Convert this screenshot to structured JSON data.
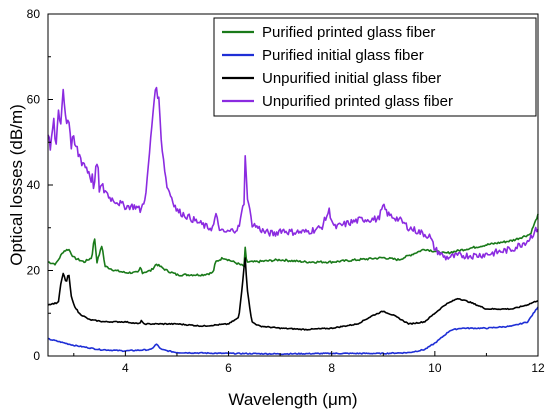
{
  "chart_data": {
    "type": "line",
    "title": "",
    "xlabel": "Wavelength (μm)",
    "ylabel": "Optical losses (dB/m)",
    "xlim": [
      2.5,
      12
    ],
    "ylim": [
      0,
      80
    ],
    "x_ticks": [
      4,
      6,
      8,
      10,
      12
    ],
    "y_ticks": [
      0,
      20,
      40,
      60,
      80
    ],
    "x_tick_labels": [
      "4",
      "6",
      "8",
      "10",
      "12"
    ],
    "y_tick_labels": [
      "0",
      "20",
      "40",
      "60",
      "80"
    ],
    "grid": false,
    "legend_position": "top-right",
    "series": [
      {
        "name": "Purified printed glass fiber",
        "color": "#1a7a1a",
        "points": [
          [
            2.5,
            22
          ],
          [
            2.65,
            21.5
          ],
          [
            2.8,
            24.5
          ],
          [
            2.9,
            25
          ],
          [
            3.0,
            23
          ],
          [
            3.2,
            22
          ],
          [
            3.35,
            23
          ],
          [
            3.4,
            28
          ],
          [
            3.45,
            22
          ],
          [
            3.55,
            26
          ],
          [
            3.6,
            21
          ],
          [
            3.8,
            20
          ],
          [
            4.0,
            19.5
          ],
          [
            4.25,
            19.5
          ],
          [
            4.3,
            21
          ],
          [
            4.32,
            19.5
          ],
          [
            4.5,
            20
          ],
          [
            4.6,
            21.5
          ],
          [
            4.8,
            20
          ],
          [
            5.0,
            19
          ],
          [
            5.5,
            19
          ],
          [
            5.7,
            19.5
          ],
          [
            5.75,
            22
          ],
          [
            5.9,
            23
          ],
          [
            6.1,
            22
          ],
          [
            6.3,
            21
          ],
          [
            6.32,
            25.5
          ],
          [
            6.35,
            22
          ],
          [
            6.5,
            22
          ],
          [
            7.0,
            22.5
          ],
          [
            7.5,
            22
          ],
          [
            8.0,
            22
          ],
          [
            8.5,
            22.5
          ],
          [
            9.0,
            23
          ],
          [
            9.3,
            22.5
          ],
          [
            9.6,
            24
          ],
          [
            9.8,
            25
          ],
          [
            10.0,
            24.5
          ],
          [
            10.2,
            24
          ],
          [
            10.6,
            25
          ],
          [
            11.0,
            26
          ],
          [
            11.5,
            27
          ],
          [
            11.85,
            28.5
          ],
          [
            12.0,
            33
          ]
        ]
      },
      {
        "name": "Purified initial glass fiber",
        "color": "#1f2fd6",
        "points": [
          [
            2.5,
            4
          ],
          [
            3.0,
            2.5
          ],
          [
            3.5,
            1.5
          ],
          [
            4.0,
            1.2
          ],
          [
            4.5,
            1.5
          ],
          [
            4.6,
            2.8
          ],
          [
            4.7,
            1.5
          ],
          [
            5.0,
            0.8
          ],
          [
            6.0,
            0.6
          ],
          [
            7.0,
            0.5
          ],
          [
            8.0,
            0.6
          ],
          [
            9.0,
            0.6
          ],
          [
            9.5,
            0.8
          ],
          [
            9.8,
            1.5
          ],
          [
            10.0,
            3
          ],
          [
            10.3,
            6
          ],
          [
            10.5,
            6.5
          ],
          [
            11.0,
            6.5
          ],
          [
            11.5,
            7
          ],
          [
            11.8,
            8
          ],
          [
            12.0,
            11.5
          ]
        ]
      },
      {
        "name": "Unpurified initial glass fiber",
        "color": "#000000",
        "points": [
          [
            2.5,
            12
          ],
          [
            2.7,
            12.5
          ],
          [
            2.75,
            17
          ],
          [
            2.8,
            19.5
          ],
          [
            2.85,
            17
          ],
          [
            2.9,
            19.5
          ],
          [
            2.95,
            14
          ],
          [
            3.0,
            12
          ],
          [
            3.1,
            10
          ],
          [
            3.3,
            8.5
          ],
          [
            3.6,
            8
          ],
          [
            4.0,
            8
          ],
          [
            4.28,
            7.5
          ],
          [
            4.3,
            8.5
          ],
          [
            4.35,
            7.5
          ],
          [
            4.6,
            7.5
          ],
          [
            5.0,
            7.5
          ],
          [
            5.5,
            7
          ],
          [
            6.0,
            7.5
          ],
          [
            6.2,
            9
          ],
          [
            6.28,
            18
          ],
          [
            6.32,
            23.5
          ],
          [
            6.36,
            16
          ],
          [
            6.45,
            8
          ],
          [
            6.6,
            7
          ],
          [
            7.0,
            6.5
          ],
          [
            7.5,
            6.2
          ],
          [
            8.0,
            6.5
          ],
          [
            8.5,
            7.5
          ],
          [
            8.8,
            9.5
          ],
          [
            9.0,
            10.5
          ],
          [
            9.2,
            9.5
          ],
          [
            9.5,
            7.5
          ],
          [
            9.8,
            8
          ],
          [
            10.2,
            12
          ],
          [
            10.45,
            13.5
          ],
          [
            10.7,
            12.5
          ],
          [
            11.0,
            11
          ],
          [
            11.5,
            11
          ],
          [
            11.8,
            12
          ],
          [
            12.0,
            13
          ]
        ]
      },
      {
        "name": "Unpurified printed glass fiber",
        "color": "#8b2be0",
        "points": [
          [
            2.5,
            52
          ],
          [
            2.55,
            47
          ],
          [
            2.6,
            56
          ],
          [
            2.65,
            48
          ],
          [
            2.7,
            58
          ],
          [
            2.75,
            55
          ],
          [
            2.8,
            63
          ],
          [
            2.85,
            55
          ],
          [
            2.9,
            56
          ],
          [
            2.95,
            49
          ],
          [
            3.0,
            50
          ],
          [
            3.1,
            47
          ],
          [
            3.2,
            45
          ],
          [
            3.3,
            43
          ],
          [
            3.4,
            40
          ],
          [
            3.45,
            45
          ],
          [
            3.5,
            39
          ],
          [
            3.6,
            39
          ],
          [
            3.7,
            37
          ],
          [
            3.85,
            36
          ],
          [
            4.0,
            35
          ],
          [
            4.2,
            35
          ],
          [
            4.3,
            34
          ],
          [
            4.4,
            38
          ],
          [
            4.5,
            52
          ],
          [
            4.58,
            63
          ],
          [
            4.65,
            60
          ],
          [
            4.7,
            50
          ],
          [
            4.8,
            40
          ],
          [
            5.0,
            34
          ],
          [
            5.3,
            32
          ],
          [
            5.6,
            30
          ],
          [
            5.7,
            30
          ],
          [
            5.75,
            33
          ],
          [
            5.85,
            29
          ],
          [
            6.0,
            29
          ],
          [
            6.2,
            30
          ],
          [
            6.3,
            36
          ],
          [
            6.32,
            48
          ],
          [
            6.36,
            38
          ],
          [
            6.45,
            31
          ],
          [
            6.7,
            29
          ],
          [
            6.9,
            28.5
          ],
          [
            7.0,
            29.5
          ],
          [
            7.2,
            29
          ],
          [
            7.5,
            29
          ],
          [
            7.8,
            30
          ],
          [
            7.95,
            34
          ],
          [
            8.05,
            30
          ],
          [
            8.3,
            31
          ],
          [
            8.6,
            32
          ],
          [
            8.9,
            32
          ],
          [
            9.0,
            35
          ],
          [
            9.1,
            33
          ],
          [
            9.3,
            32
          ],
          [
            9.5,
            30
          ],
          [
            9.7,
            29
          ],
          [
            9.9,
            28
          ],
          [
            10.0,
            25
          ],
          [
            10.2,
            23
          ],
          [
            10.5,
            23.5
          ],
          [
            10.8,
            23.5
          ],
          [
            11.1,
            24
          ],
          [
            11.5,
            25
          ],
          [
            11.8,
            27
          ],
          [
            12.0,
            30
          ]
        ]
      }
    ]
  }
}
